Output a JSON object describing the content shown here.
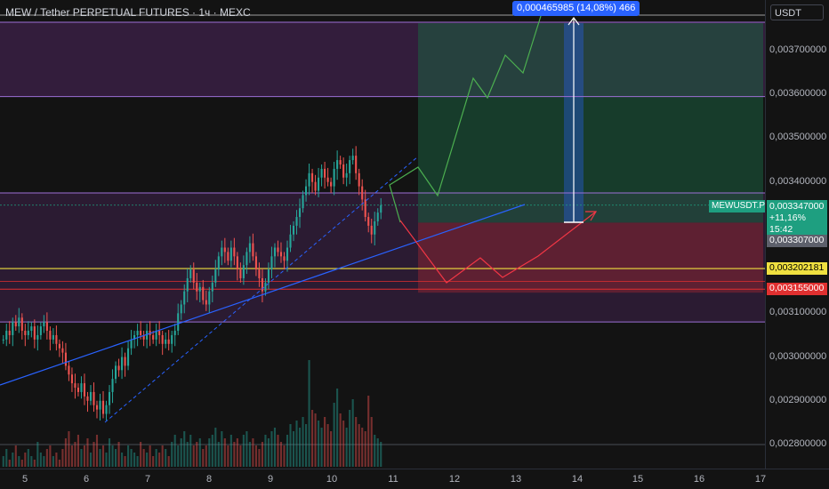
{
  "header": {
    "title": "MEW / Tether PERPETUAL FUTURES · 1ч · MEXC",
    "currency": "USDT"
  },
  "measure": {
    "label": "0,000465985 (14,08%) 466"
  },
  "ticker": {
    "label": "MEWUSDT.P"
  },
  "price_badges": {
    "last": {
      "price": "0,003347000",
      "change": "+11,16%",
      "countdown": "15:42",
      "color": "#1e9f80"
    },
    "gray": {
      "price": "0,003307000",
      "color": "#5d606b"
    },
    "yellow": {
      "price": "0,003202181",
      "color": "#f0e040"
    },
    "red": {
      "price": "0,003155000",
      "color": "#e03030"
    }
  },
  "colors": {
    "up": "#26a69a",
    "down": "#ef5350",
    "profit_zone": "#1b5e3f",
    "loss_zone": "#7a2433",
    "purple_zone": "#5a2a6e",
    "trendline": "#2962ff",
    "projection_up": "#4caf50",
    "projection_down": "#f23645"
  },
  "chart_data": {
    "type": "candlestick",
    "price_axis": {
      "ticks": [
        "0,003700000",
        "0,003600000",
        "0,003500000",
        "0,003400000",
        "0,003100000",
        "0,003000000",
        "0,002900000",
        "0,002800000"
      ],
      "tick_values": [
        0.0037,
        0.0036,
        0.0035,
        0.0034,
        0.0031,
        0.003,
        0.0029,
        0.0028
      ]
    },
    "time_axis": {
      "labels": [
        "5",
        "6",
        "7",
        "8",
        "9",
        "10",
        "11",
        "12",
        "13",
        "14",
        "15",
        "16",
        "17"
      ]
    },
    "candles_close": [
      0.00304,
      0.00306,
      0.00305,
      0.00308,
      0.00307,
      0.00309,
      0.00306,
      0.00305,
      0.00306,
      0.00307,
      0.00304,
      0.00305,
      0.00307,
      0.00308,
      0.00306,
      0.00304,
      0.00305,
      0.00303,
      0.00302,
      0.00301,
      0.00298,
      0.00296,
      0.00294,
      0.00293,
      0.00292,
      0.00294,
      0.00291,
      0.0029,
      0.00292,
      0.00289,
      0.00288,
      0.0029,
      0.00287,
      0.00289,
      0.00292,
      0.00295,
      0.00298,
      0.00297,
      0.003,
      0.00298,
      0.00302,
      0.00304,
      0.00305,
      0.00306,
      0.00305,
      0.00304,
      0.00306,
      0.00305,
      0.00304,
      0.00306,
      0.00305,
      0.00303,
      0.00304,
      0.00303,
      0.00305,
      0.00306,
      0.0031,
      0.00312,
      0.00315,
      0.00318,
      0.0032,
      0.00317,
      0.00315,
      0.00316,
      0.00313,
      0.00312,
      0.00315,
      0.00317,
      0.0032,
      0.00323,
      0.00325,
      0.00324,
      0.00322,
      0.00325,
      0.00323,
      0.0032,
      0.00318,
      0.00321,
      0.00324,
      0.00326,
      0.00323,
      0.0032,
      0.00318,
      0.00315,
      0.00317,
      0.0032,
      0.00323,
      0.00325,
      0.00324,
      0.00323,
      0.00322,
      0.00325,
      0.00328,
      0.0033,
      0.00332,
      0.00334,
      0.00337,
      0.00339,
      0.00342,
      0.0034,
      0.00338,
      0.00341,
      0.00343,
      0.00341,
      0.0034,
      0.00339,
      0.00343,
      0.00345,
      0.00344,
      0.00341,
      0.00342,
      0.00345,
      0.00346,
      0.00342,
      0.00339,
      0.00336,
      0.00332,
      0.0033,
      0.00328,
      0.00331,
      0.00333,
      0.003347
    ],
    "volumes": [
      3,
      5,
      2,
      4,
      6,
      3,
      2,
      4,
      5,
      3,
      2,
      7,
      4,
      3,
      5,
      6,
      3,
      4,
      2,
      5,
      8,
      10,
      6,
      7,
      9,
      5,
      6,
      8,
      4,
      7,
      9,
      5,
      6,
      4,
      8,
      6,
      5,
      7,
      4,
      3,
      6,
      5,
      4,
      3,
      7,
      5,
      4,
      6,
      3,
      5,
      4,
      6,
      5,
      3,
      7,
      9,
      6,
      8,
      10,
      7,
      9,
      6,
      7,
      8,
      5,
      6,
      8,
      9,
      11,
      7,
      10,
      8,
      6,
      9,
      7,
      8,
      6,
      9,
      10,
      7,
      8,
      6,
      5,
      7,
      9,
      8,
      10,
      11,
      9,
      7,
      6,
      9,
      12,
      10,
      13,
      11,
      14,
      12,
      30,
      16,
      15,
      13,
      11,
      14,
      12,
      10,
      18,
      22,
      15,
      13,
      11,
      16,
      19,
      14,
      12,
      11,
      10,
      20,
      14,
      9,
      8,
      7
    ],
    "levels": {
      "upper_band": [
        0.003765,
        0.003595
      ],
      "mid_band": [
        0.003375,
        0.00308
      ],
      "entry": 0.003307,
      "target": 0.003773,
      "stop": 0.003155,
      "yellow": 0.003202181
    }
  }
}
